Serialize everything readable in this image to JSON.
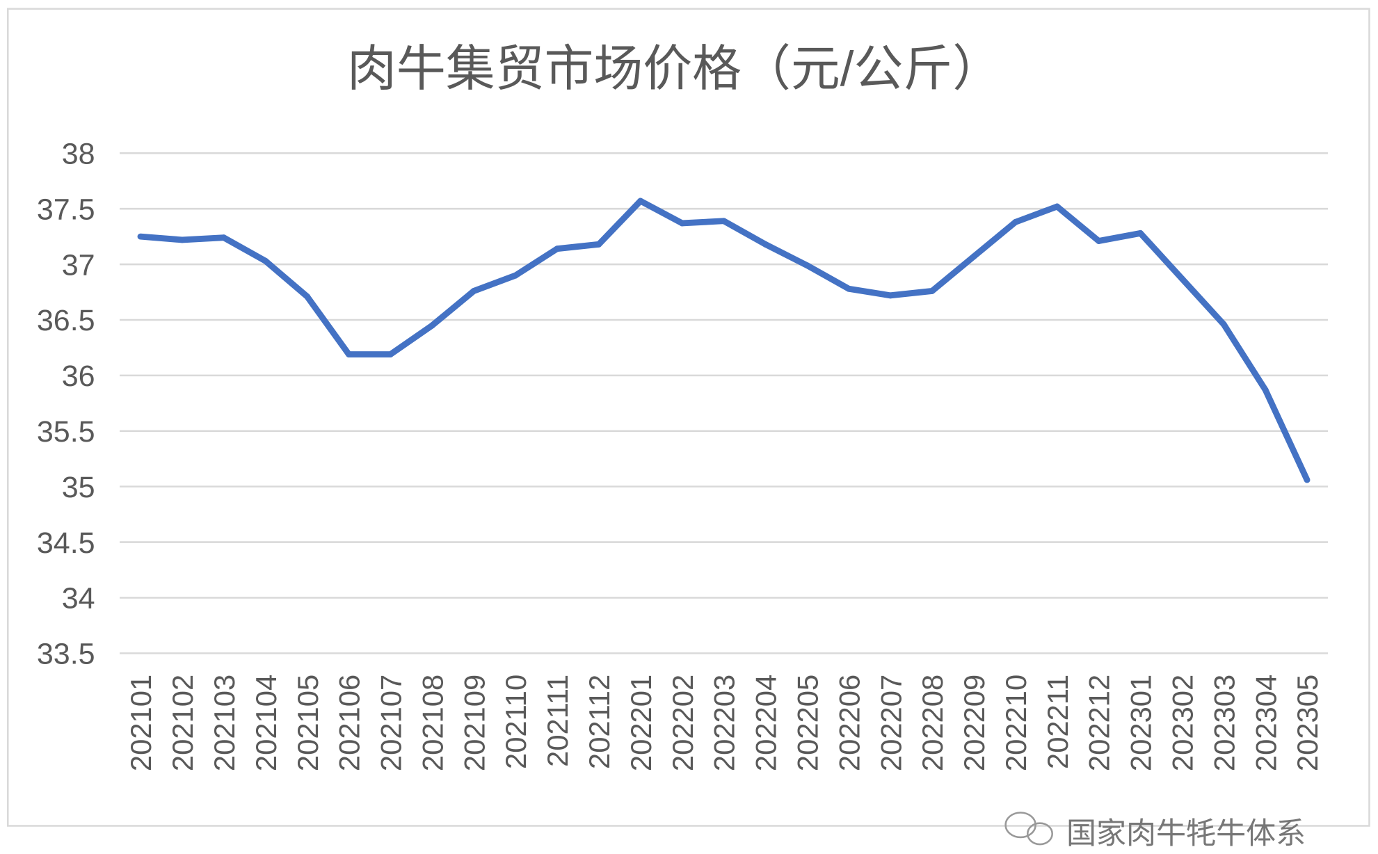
{
  "chart_data": {
    "type": "line",
    "title": "肉牛集贸市场价格（元/公斤）",
    "xlabel": "",
    "ylabel": "",
    "ylim": [
      33.5,
      38
    ],
    "yticks": [
      "38",
      "37.5",
      "37",
      "36.5",
      "36",
      "35.5",
      "35",
      "34.5",
      "34",
      "33.5"
    ],
    "ytick_values": [
      38,
      37.5,
      37,
      36.5,
      36,
      35.5,
      35,
      34.5,
      34,
      33.5
    ],
    "grid": true,
    "legend": "none",
    "categories": [
      "202101",
      "202102",
      "202103",
      "202104",
      "202105",
      "202106",
      "202107",
      "202108",
      "202109",
      "202110",
      "202111",
      "202112",
      "202201",
      "202202",
      "202203",
      "202204",
      "202205",
      "202206",
      "202207",
      "202208",
      "202209",
      "202210",
      "202211",
      "202212",
      "202301",
      "202302",
      "202303",
      "202304",
      "202305"
    ],
    "series": [
      {
        "name": "肉牛集贸市场价格",
        "color": "#4472C4",
        "values": [
          37.25,
          37.22,
          37.24,
          37.03,
          36.71,
          36.19,
          36.19,
          36.45,
          36.76,
          36.9,
          37.14,
          37.18,
          37.57,
          37.37,
          37.39,
          37.18,
          36.99,
          36.78,
          36.72,
          36.76,
          37.07,
          37.38,
          37.52,
          37.21,
          37.28,
          36.87,
          36.46,
          35.87,
          35.06
        ]
      }
    ]
  },
  "watermark": "国家肉牛牦牛体系"
}
